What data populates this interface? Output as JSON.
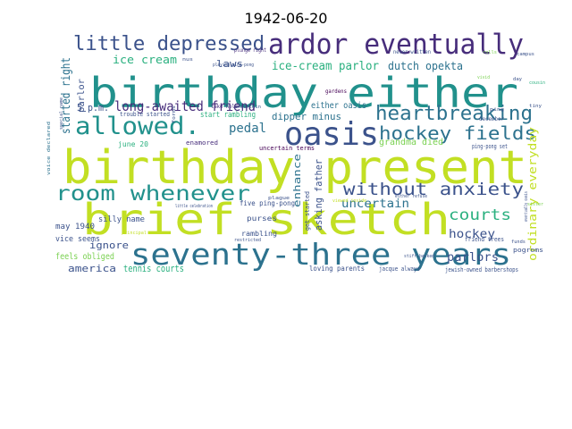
{
  "title": "1942-06-20",
  "palette": {
    "yellow": "#c2df23",
    "lime": "#7ad151",
    "green": "#2ab07f",
    "teal": "#21918c",
    "blue": "#2c728e",
    "indigo": "#3b528b",
    "purple": "#472d7b",
    "dark": "#440154"
  },
  "words": [
    {
      "text": "birthday present",
      "color": "#c2df23"
    },
    {
      "text": "brief sketch",
      "color": "#c2df23"
    },
    {
      "text": "birthday either",
      "color": "#21918c"
    },
    {
      "text": "seventy-three years",
      "color": "#2c728e"
    },
    {
      "text": "ardor eventually",
      "color": "#472d7b"
    },
    {
      "text": "oasis",
      "color": "#3b528b"
    },
    {
      "text": "allowed.",
      "color": "#21918c"
    },
    {
      "text": "room whenever",
      "color": "#21918c"
    },
    {
      "text": "little depressed",
      "color": "#3b528b"
    },
    {
      "text": "heartbreaking",
      "color": "#2c728e"
    },
    {
      "text": "hockey fields",
      "color": "#2c728e"
    },
    {
      "text": "without anxiety",
      "color": "#3b528b"
    },
    {
      "text": "long-awaited friend",
      "color": "#472d7b"
    },
    {
      "text": "courts",
      "color": "#2ab07f"
    },
    {
      "text": "ice-cream parlor",
      "color": "#2ab07f"
    },
    {
      "text": "ice cream",
      "color": "#2ab07f"
    },
    {
      "text": "started right",
      "color": "#2c728e"
    },
    {
      "text": "pedal",
      "color": "#2c728e"
    },
    {
      "text": "uncertain",
      "color": "#2c728e"
    },
    {
      "text": "hockey",
      "color": "#3b528b"
    },
    {
      "text": "parlors",
      "color": "#3b528b"
    },
    {
      "text": "ordinary everyday",
      "color": "#c2df23"
    },
    {
      "text": "dutch opekta",
      "color": "#2c728e"
    },
    {
      "text": "laws",
      "color": "#3b528b"
    },
    {
      "text": "5 p.m.",
      "color": "#3b528b"
    },
    {
      "text": "dipper minus",
      "color": "#2c728e"
    },
    {
      "text": "enhance",
      "color": "#2c728e"
    },
    {
      "text": "asking father",
      "color": "#3b528b"
    },
    {
      "text": "grandma died",
      "color": "#7ad151"
    },
    {
      "text": "either oasis",
      "color": "#2c728e"
    },
    {
      "text": "ignore",
      "color": "#3b528b"
    },
    {
      "text": "america",
      "color": "#3b528b"
    },
    {
      "text": "tennis courts",
      "color": "#2ab07f"
    },
    {
      "text": "feels obliged",
      "color": "#7ad151"
    },
    {
      "text": "may 1940",
      "color": "#3b528b"
    },
    {
      "text": "silly name",
      "color": "#3b528b"
    },
    {
      "text": "vice seems",
      "color": "#3b528b"
    },
    {
      "text": "parlor",
      "color": "#3b528b"
    },
    {
      "text": "start rambling",
      "color": "#2ab07f"
    },
    {
      "text": "trouble started",
      "color": "#3b528b"
    },
    {
      "text": "june 20",
      "color": "#2ab07f"
    },
    {
      "text": "enamored",
      "color": "#472d7b"
    },
    {
      "text": "uncertain terms",
      "color": "#440154"
    },
    {
      "text": "get started",
      "color": "#3b528b"
    },
    {
      "text": "five ping-pong",
      "color": "#3b528b"
    },
    {
      "text": "purses",
      "color": "#3b528b"
    },
    {
      "text": "rambling",
      "color": "#3b528b"
    },
    {
      "text": "loving parents",
      "color": "#3b528b"
    },
    {
      "text": "jacque always",
      "color": "#3b528b"
    },
    {
      "text": "jewish-owned barbershops",
      "color": "#3b528b"
    },
    {
      "text": "friend trees",
      "color": "#3b528b"
    },
    {
      "text": "ping-pong set",
      "color": "#3b528b"
    },
    {
      "text": "december",
      "color": "#3b528b"
    },
    {
      "text": "pogroms",
      "color": "#3b528b"
    },
    {
      "text": "gardens",
      "color": "#440154"
    },
    {
      "text": "never written",
      "color": "#3b528b"
    },
    {
      "text": "plunge right",
      "color": "#472d7b"
    },
    {
      "text": "playing ping-pong",
      "color": "#3b528b"
    },
    {
      "text": "little celebration",
      "color": "#3b528b"
    },
    {
      "text": "restricted",
      "color": "#3b528b"
    },
    {
      "text": "take hold",
      "color": "#472d7b"
    },
    {
      "text": "stiff-backed",
      "color": "#3b528b"
    },
    {
      "text": "either refuse",
      "color": "#3b528b"
    },
    {
      "text": "plague",
      "color": "#3b528b"
    },
    {
      "text": "forms",
      "color": "#3b528b"
    },
    {
      "text": "funds",
      "color": "#3b528b"
    },
    {
      "text": "principal",
      "color": "#c2df23"
    },
    {
      "text": "special name",
      "color": "#3b528b"
    },
    {
      "text": "vivid",
      "color": "#7ad151"
    },
    {
      "text": "rolls",
      "color": "#7ad151"
    },
    {
      "text": "nus",
      "color": "#3b528b"
    },
    {
      "text": "ping",
      "color": "#3b528b"
    },
    {
      "text": "tiny",
      "color": "#3b528b"
    },
    {
      "text": "campus",
      "color": "#3b528b"
    },
    {
      "text": "uncertain",
      "color": "#3b528b"
    },
    {
      "text": "cousin",
      "color": "#2ab07f"
    },
    {
      "text": "eventually oasis",
      "color": "#3b528b"
    },
    {
      "text": "viewed inside",
      "color": "#c2df23"
    },
    {
      "text": "sister",
      "color": "#7ad151"
    },
    {
      "text": "voice declared",
      "color": "#2c728e"
    },
    {
      "text": "day",
      "color": "#3b528b"
    }
  ]
}
